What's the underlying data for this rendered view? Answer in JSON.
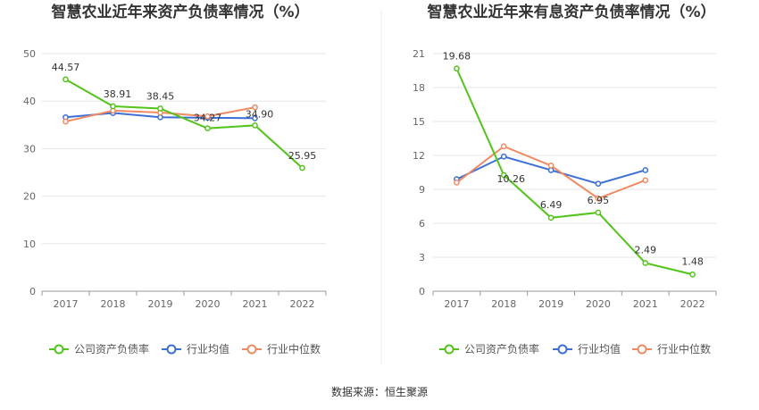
{
  "source": "数据来源：恒生聚源",
  "colors": {
    "company": "#52c41a",
    "avg": "#3b6fd6",
    "median": "#f08a63"
  },
  "chart_data": [
    {
      "type": "line",
      "title": "智慧农业近年来资产负债率情况（%）",
      "categories": [
        "2017",
        "2018",
        "2019",
        "2020",
        "2021",
        "2022"
      ],
      "ylim": [
        0,
        50
      ],
      "yticks": [
        0,
        10,
        20,
        30,
        40,
        50
      ],
      "grid": true,
      "legend": "bottom",
      "series": [
        {
          "name": "公司资产负债率",
          "key": "company",
          "values": [
            44.57,
            38.91,
            38.45,
            34.27,
            34.9,
            25.95
          ],
          "labels": [
            "44.57",
            "38.91",
            "38.45",
            "34.27",
            "34.90",
            "25.95"
          ]
        },
        {
          "name": "行业均值",
          "key": "avg",
          "values": [
            36.6,
            37.5,
            36.6,
            36.5,
            36.4,
            null
          ]
        },
        {
          "name": "行业中位数",
          "key": "median",
          "values": [
            35.7,
            38.0,
            37.6,
            36.8,
            38.7,
            null
          ]
        }
      ]
    },
    {
      "type": "line",
      "title": "智慧农业近年来有息资产负债率情况（%）",
      "categories": [
        "2017",
        "2018",
        "2019",
        "2020",
        "2021",
        "2022"
      ],
      "ylim": [
        0,
        21
      ],
      "yticks": [
        0,
        3,
        6,
        9,
        12,
        15,
        18,
        21
      ],
      "grid": true,
      "legend": "bottom",
      "series": [
        {
          "name": "公司资产负债率",
          "key": "company",
          "values": [
            19.68,
            10.26,
            6.49,
            6.95,
            2.49,
            1.48
          ],
          "labels": [
            "19.68",
            "10.26",
            "6.49",
            "6.95",
            "2.49",
            "1.48"
          ]
        },
        {
          "name": "行业均值",
          "key": "avg",
          "values": [
            9.9,
            11.9,
            10.7,
            9.5,
            10.7,
            null
          ]
        },
        {
          "name": "行业中位数",
          "key": "median",
          "values": [
            9.6,
            12.8,
            11.1,
            8.2,
            9.8,
            null
          ]
        }
      ]
    }
  ]
}
